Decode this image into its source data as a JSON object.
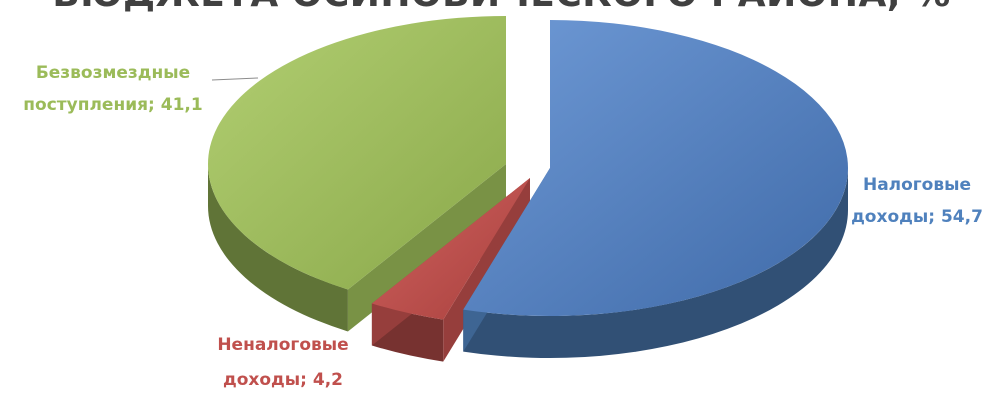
{
  "chart_data": {
    "type": "pie",
    "title": "БЮДЖЕТА ОСИНОВИЧЕСКОГО РАЙОНА, %",
    "categories": [
      "Налоговые доходы",
      "Неналоговые доходы",
      "Безвозмездные поступления"
    ],
    "values": [
      54.7,
      4.2,
      41.1
    ],
    "data_labels": [
      [
        "Налоговые",
        "доходы; 54,7"
      ],
      [
        "Неналоговые",
        "доходы; 4,2"
      ],
      [
        "Безвозмездные",
        "поступления; 41,1"
      ]
    ],
    "colors": [
      "#4f81bd",
      "#c0504d",
      "#9bbb59"
    ],
    "style": "3d-exploded",
    "legend": "none"
  }
}
